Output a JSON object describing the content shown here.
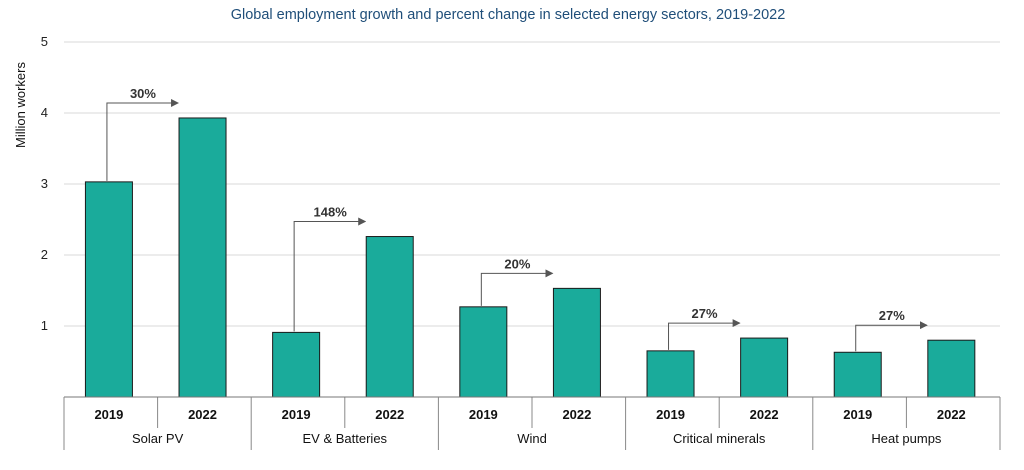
{
  "chart_data": {
    "type": "bar",
    "title": "Global employment growth and percent change in selected energy sectors, 2019-2022",
    "xlabel": "",
    "ylabel": "Million workers",
    "ylim": [
      0,
      5
    ],
    "yticks": [
      "1",
      "2",
      "3",
      "4",
      "5"
    ],
    "grid": true,
    "legend": "none",
    "bar_color": "#1aab9b",
    "bar_edge_color": "#1a1a1a",
    "annotation_color": "#555555",
    "groups": [
      {
        "name": "Solar PV",
        "years": [
          "2019",
          "2022"
        ],
        "values": [
          3.03,
          3.93
        ],
        "change_label": "30%"
      },
      {
        "name": "EV & Batteries",
        "years": [
          "2019",
          "2022"
        ],
        "values": [
          0.91,
          2.26
        ],
        "change_label": "148%"
      },
      {
        "name": "Wind",
        "years": [
          "2019",
          "2022"
        ],
        "values": [
          1.27,
          1.53
        ],
        "change_label": "20%"
      },
      {
        "name": "Critical minerals",
        "years": [
          "2019",
          "2022"
        ],
        "values": [
          0.65,
          0.83
        ],
        "change_label": "27%"
      },
      {
        "name": "Heat pumps",
        "years": [
          "2019",
          "2022"
        ],
        "values": [
          0.63,
          0.8
        ],
        "change_label": "27%"
      }
    ]
  }
}
